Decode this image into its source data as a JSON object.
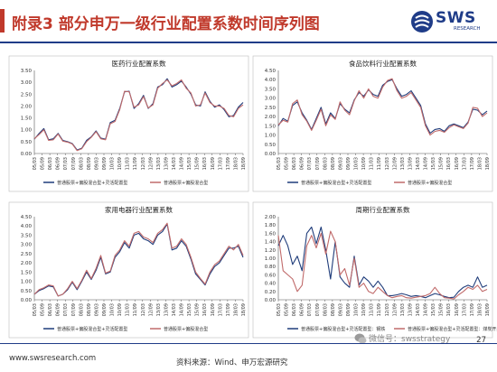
{
  "title": "附录3 部分申万一级行业配置系数时间序列图",
  "logo": {
    "name": "SWS",
    "sub": "RESEARCH"
  },
  "footer": {
    "url": "www.swsresearch.com",
    "source": "资料来源：Wind、申万宏源研究",
    "page": "27"
  },
  "watermark": "微信号：swsstrategy",
  "colors": {
    "series1": "#1f3c7a",
    "series2": "#c06a6a",
    "title": "#c0392b",
    "brand": "#1f3c88"
  },
  "chart_data": [
    {
      "type": "line",
      "title": "医药行业配置系数",
      "yticks": [
        "0.00",
        "0.50",
        "1.00",
        "1.50",
        "2.00",
        "2.50",
        "3.00",
        "3.50"
      ],
      "ylim": [
        0,
        3.5
      ],
      "xticks": [
        "05/03",
        "05/09",
        "06/03",
        "06/09",
        "07/03",
        "07/09",
        "08/03",
        "08/09",
        "09/03",
        "09/09",
        "10/03",
        "10/09",
        "11/03",
        "11/09",
        "12/03",
        "12/09",
        "13/03",
        "13/09",
        "14/03",
        "14/09",
        "15/03",
        "15/09",
        "16/03",
        "16/09",
        "17/03",
        "17/09",
        "18/03",
        "18/09"
      ],
      "legend": [
        "普通股票+偏股混合型+灵活配置型",
        "普通股票+偏股混合型"
      ],
      "series": [
        {
          "name": "普通股票+偏股混合型+灵活配置型",
          "values": [
            0.6,
            0.85,
            1.05,
            0.58,
            0.62,
            0.85,
            0.55,
            0.5,
            0.42,
            0.15,
            0.22,
            0.55,
            0.7,
            0.95,
            0.65,
            0.6,
            1.3,
            1.4,
            1.9,
            2.6,
            2.62,
            1.9,
            2.1,
            2.45,
            1.9,
            2.1,
            2.8,
            2.9,
            3.15,
            2.8,
            2.9,
            3.05,
            2.8,
            2.5,
            2.05,
            2.0,
            2.6,
            2.2,
            1.95,
            2.05,
            1.85,
            1.55,
            1.6,
            1.95,
            2.15
          ]
        },
        {
          "name": "普通股票+偏股混合型",
          "values": [
            0.62,
            0.8,
            1.0,
            0.55,
            0.58,
            0.82,
            0.52,
            0.48,
            0.4,
            0.12,
            0.2,
            0.5,
            0.68,
            0.92,
            0.62,
            0.58,
            1.25,
            1.35,
            1.85,
            2.62,
            2.6,
            1.95,
            2.05,
            2.4,
            1.92,
            2.05,
            2.75,
            2.95,
            3.1,
            2.85,
            2.95,
            3.1,
            2.75,
            2.55,
            2.0,
            2.05,
            2.55,
            2.15,
            2.0,
            2.0,
            1.9,
            1.6,
            1.55,
            1.9,
            2.05
          ]
        }
      ]
    },
    {
      "type": "line",
      "title": "食品饮料行业配置系数",
      "yticks": [
        "0.00",
        "0.50",
        "1.00",
        "1.50",
        "2.00",
        "2.50",
        "3.00",
        "3.50",
        "4.00",
        "4.50"
      ],
      "ylim": [
        0,
        4.5
      ],
      "xticks": [
        "05/03",
        "05/09",
        "06/03",
        "06/09",
        "07/03",
        "07/09",
        "08/03",
        "08/09",
        "09/03",
        "09/09",
        "10/03",
        "10/09",
        "11/03",
        "11/09",
        "12/03",
        "12/09",
        "13/03",
        "13/09",
        "14/03",
        "14/09",
        "15/03",
        "15/09",
        "16/03",
        "16/09",
        "17/03",
        "17/09",
        "18/03",
        "18/09"
      ],
      "legend": [
        "普通股票+偏股混合型+灵活配置型",
        "普通股票+偏股混合型"
      ],
      "series": [
        {
          "name": "普通股票+偏股混合型+灵活配置型",
          "values": [
            1.5,
            1.9,
            1.75,
            2.6,
            2.8,
            2.2,
            1.8,
            1.3,
            1.9,
            2.5,
            1.6,
            2.2,
            1.9,
            2.7,
            2.4,
            2.2,
            2.9,
            3.3,
            3.1,
            3.45,
            3.2,
            3.1,
            3.7,
            3.9,
            4.0,
            3.5,
            3.1,
            3.2,
            3.4,
            3.0,
            2.6,
            1.6,
            1.1,
            1.3,
            1.35,
            1.2,
            1.5,
            1.6,
            1.5,
            1.4,
            1.7,
            2.4,
            2.35,
            2.1,
            2.3
          ]
        },
        {
          "name": "普通股票+偏股混合型",
          "values": [
            1.55,
            1.8,
            1.7,
            2.7,
            2.9,
            2.1,
            1.75,
            1.25,
            1.8,
            2.4,
            1.5,
            2.1,
            1.85,
            2.8,
            2.35,
            2.1,
            2.85,
            3.4,
            3.0,
            3.5,
            3.1,
            3.0,
            3.6,
            3.95,
            4.05,
            3.4,
            3.0,
            3.1,
            3.3,
            2.9,
            2.5,
            1.5,
            1.0,
            1.2,
            1.25,
            1.15,
            1.4,
            1.55,
            1.45,
            1.35,
            1.65,
            2.5,
            2.45,
            2.0,
            2.2
          ]
        }
      ]
    },
    {
      "type": "line",
      "title": "家用电器行业配置系数",
      "yticks": [
        "0.00",
        "0.50",
        "1.00",
        "1.50",
        "2.00",
        "2.50",
        "3.00",
        "3.50",
        "4.00",
        "4.50"
      ],
      "ylim": [
        0,
        4.5
      ],
      "xticks": [
        "05/03",
        "05/09",
        "06/03",
        "06/09",
        "07/03",
        "07/09",
        "08/03",
        "08/09",
        "09/03",
        "09/09",
        "10/03",
        "10/09",
        "11/03",
        "11/09",
        "12/03",
        "12/09",
        "13/03",
        "13/09",
        "14/03",
        "14/09",
        "15/03",
        "15/09",
        "16/03",
        "16/09",
        "17/03",
        "17/09",
        "18/03",
        "18/09"
      ],
      "legend": [
        "普通股票+偏股混合型+灵活配置型",
        "普通股票+偏股混合型"
      ],
      "series": [
        {
          "name": "普通股票+偏股混合型+灵活配置型",
          "values": [
            0.3,
            0.5,
            0.6,
            0.75,
            0.7,
            0.2,
            0.3,
            0.55,
            0.95,
            0.55,
            1.0,
            1.5,
            1.1,
            1.6,
            2.3,
            1.4,
            1.5,
            2.3,
            2.6,
            3.1,
            2.8,
            3.5,
            3.6,
            3.3,
            3.2,
            3.0,
            3.5,
            3.7,
            4.1,
            2.7,
            2.8,
            3.2,
            2.9,
            2.2,
            1.4,
            1.1,
            0.8,
            1.4,
            1.8,
            2.0,
            2.4,
            2.8,
            2.8,
            2.9,
            2.3
          ]
        },
        {
          "name": "普通股票+偏股混合型",
          "values": [
            0.3,
            0.55,
            0.65,
            0.8,
            0.75,
            0.2,
            0.3,
            0.6,
            1.0,
            0.6,
            1.05,
            1.6,
            1.15,
            1.7,
            2.4,
            1.45,
            1.55,
            2.4,
            2.7,
            3.2,
            2.9,
            3.6,
            3.7,
            3.4,
            3.3,
            3.1,
            3.6,
            3.8,
            4.15,
            2.8,
            2.9,
            3.3,
            3.0,
            2.3,
            1.5,
            1.15,
            0.85,
            1.5,
            1.9,
            2.1,
            2.5,
            2.9,
            2.7,
            3.0,
            2.4
          ]
        }
      ]
    },
    {
      "type": "line",
      "title": "周期行业配置系数",
      "yticks": [
        "0.00",
        "0.20",
        "0.40",
        "0.60",
        "0.80",
        "1.00",
        "1.20",
        "1.40",
        "1.60",
        "1.80",
        "2.00"
      ],
      "ylim": [
        0,
        2.0
      ],
      "xticks": [
        "05/03",
        "05/09",
        "06/03",
        "06/09",
        "07/03",
        "07/09",
        "08/03",
        "08/09",
        "09/03",
        "09/09",
        "10/03",
        "10/09",
        "11/03",
        "11/09",
        "12/03",
        "12/09",
        "13/03",
        "13/09",
        "14/03",
        "14/09",
        "15/03",
        "15/09",
        "16/03",
        "16/09",
        "17/03",
        "17/09",
        "18/03",
        "18/09"
      ],
      "legend": [
        "普通股票+偏股混合型+灵活配置型：钢铁",
        "普通股票+偏股混合型+灵活配置型：煤炭开采"
      ],
      "series": [
        {
          "name": "普通股票+偏股混合型+灵活配置型：钢铁",
          "values": [
            1.3,
            1.55,
            1.3,
            0.85,
            1.05,
            0.7,
            1.6,
            1.75,
            1.35,
            1.75,
            1.2,
            0.5,
            1.4,
            0.55,
            0.4,
            0.3,
            1.05,
            0.35,
            0.55,
            0.45,
            0.3,
            0.45,
            0.3,
            0.1,
            0.1,
            0.12,
            0.15,
            0.12,
            0.08,
            0.1,
            0.08,
            0.05,
            0.1,
            0.15,
            0.12,
            0.08,
            0.05,
            0.06,
            0.2,
            0.3,
            0.35,
            0.3,
            0.55,
            0.3,
            0.35
          ]
        },
        {
          "name": "普通股票+偏股混合型+灵活配置型：煤炭开采",
          "values": [
            1.55,
            0.7,
            0.6,
            0.5,
            0.2,
            0.35,
            1.3,
            1.55,
            1.25,
            1.6,
            1.1,
            1.65,
            1.4,
            0.6,
            0.75,
            0.35,
            1.0,
            0.3,
            0.4,
            0.2,
            0.15,
            0.3,
            0.2,
            0.1,
            0.05,
            0.08,
            0.1,
            0.05,
            0.04,
            0.06,
            0.08,
            0.1,
            0.15,
            0.3,
            0.15,
            0.05,
            0.04,
            0.02,
            0.12,
            0.2,
            0.3,
            0.25,
            0.35,
            0.2,
            0.25
          ]
        }
      ]
    }
  ]
}
